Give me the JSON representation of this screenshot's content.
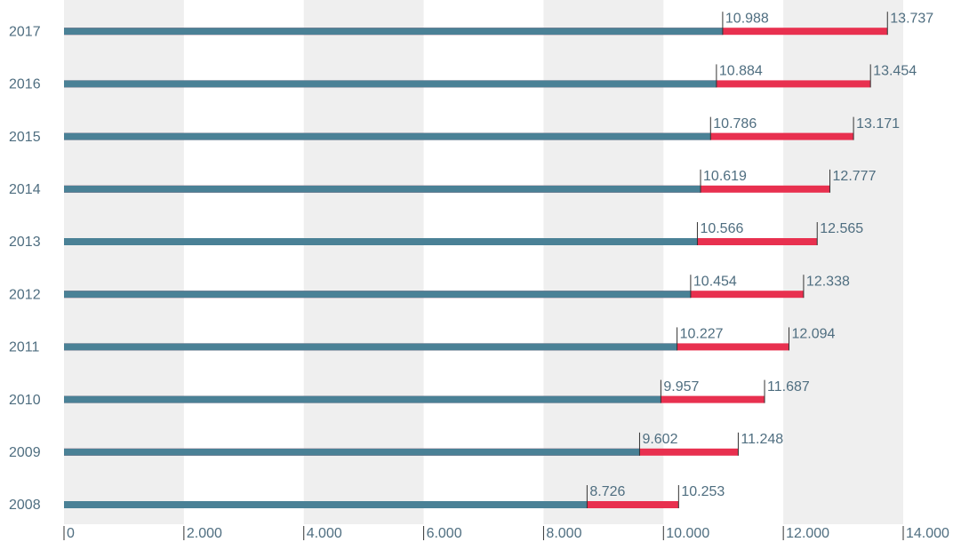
{
  "chart_data": {
    "type": "bar",
    "orientation": "horizontal",
    "overlap": true,
    "categories": [
      "2008",
      "2009",
      "2010",
      "2011",
      "2012",
      "2013",
      "2014",
      "2015",
      "2016",
      "2017"
    ],
    "series": [
      {
        "color": "#e8304f",
        "values": [
          10253,
          11248,
          11687,
          12094,
          12338,
          12565,
          12777,
          13171,
          13454,
          13737
        ],
        "value_labels": [
          "10.253",
          "11.248",
          "11.687",
          "12.094",
          "12.338",
          "12.565",
          "12.777",
          "13.171",
          "13.454",
          "13.737"
        ]
      },
      {
        "color": "#4a8196",
        "values": [
          8726,
          9602,
          9957,
          10227,
          10454,
          10566,
          10619,
          10786,
          10884,
          10988
        ],
        "value_labels": [
          "8.726",
          "9.602",
          "9.957",
          "10.227",
          "10.454",
          "10.566",
          "10.619",
          "10.786",
          "10.884",
          "10.988"
        ]
      }
    ],
    "xlim": [
      0,
      14000
    ],
    "xticks": [
      0,
      {
        "value": 2000,
        "label": "2.000"
      },
      {
        "value": 4000,
        "label": "4.000"
      },
      {
        "value": 6000,
        "label": "6.000"
      },
      {
        "value": 8000,
        "label": "8.000"
      },
      {
        "value": 10000,
        "label": "10.000"
      },
      {
        "value": 12000,
        "label": "12.000"
      },
      {
        "value": 14000,
        "label": "14.000"
      }
    ],
    "grid": true,
    "band_color": "#efefef"
  }
}
